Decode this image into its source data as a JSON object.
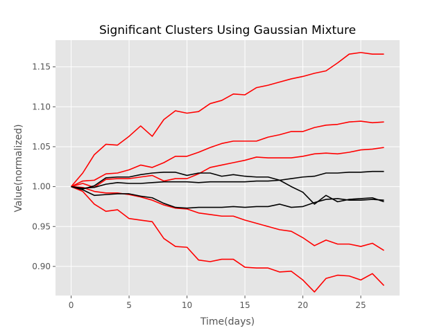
{
  "chart_data": {
    "type": "line",
    "title": "Significant Clusters Using Gaussian Mixture",
    "xlabel": "Time(days)",
    "ylabel": "Value(normalized)",
    "xlim": [
      -1.35,
      28.35
    ],
    "ylim": [
      0.8635,
      1.1835
    ],
    "xticks": [
      0,
      5,
      10,
      15,
      20,
      25
    ],
    "xtick_labels": [
      "0",
      "5",
      "10",
      "15",
      "20",
      "25"
    ],
    "yticks": [
      0.9,
      0.95,
      1.0,
      1.05,
      1.1,
      1.15
    ],
    "ytick_labels": [
      "0.90",
      "0.95",
      "1.00",
      "1.05",
      "1.10",
      "1.15"
    ],
    "grid": true,
    "background": "#e5e5e5",
    "grid_color": "#ffffff",
    "x": [
      0,
      1,
      2,
      3,
      4,
      5,
      6,
      7,
      8,
      9,
      10,
      11,
      12,
      13,
      14,
      15,
      16,
      17,
      18,
      19,
      20,
      21,
      22,
      23,
      24,
      25,
      26,
      27
    ],
    "series": [
      {
        "color": "#ff0000",
        "values": [
          1.0,
          1.017,
          1.04,
          1.053,
          1.052,
          1.063,
          1.076,
          1.063,
          1.084,
          1.095,
          1.092,
          1.094,
          1.104,
          1.108,
          1.116,
          1.115,
          1.124,
          1.127,
          1.131,
          1.135,
          1.138,
          1.142,
          1.145,
          1.155,
          1.166,
          1.168,
          1.166,
          1.166
        ]
      },
      {
        "color": "#ff0000",
        "values": [
          1.0,
          1.007,
          1.008,
          1.016,
          1.017,
          1.021,
          1.027,
          1.024,
          1.03,
          1.038,
          1.038,
          1.043,
          1.049,
          1.054,
          1.057,
          1.057,
          1.057,
          1.062,
          1.065,
          1.069,
          1.069,
          1.074,
          1.077,
          1.078,
          1.081,
          1.082,
          1.08,
          1.081
        ]
      },
      {
        "color": "#ff0000",
        "values": [
          1.0,
          1.004,
          0.999,
          1.009,
          1.01,
          1.01,
          1.012,
          1.014,
          1.007,
          1.01,
          1.01,
          1.016,
          1.024,
          1.027,
          1.03,
          1.033,
          1.037,
          1.036,
          1.036,
          1.036,
          1.038,
          1.041,
          1.042,
          1.041,
          1.043,
          1.046,
          1.047,
          1.049
        ]
      },
      {
        "color": "#ff0000",
        "values": [
          1.0,
          0.999,
          0.994,
          0.992,
          0.992,
          0.99,
          0.987,
          0.983,
          0.977,
          0.973,
          0.972,
          0.967,
          0.965,
          0.963,
          0.963,
          0.958,
          0.954,
          0.95,
          0.946,
          0.944,
          0.936,
          0.926,
          0.933,
          0.928,
          0.928,
          0.925,
          0.929,
          0.92
        ]
      },
      {
        "color": "#ff0000",
        "values": [
          1.0,
          0.994,
          0.978,
          0.969,
          0.971,
          0.96,
          0.958,
          0.956,
          0.935,
          0.925,
          0.924,
          0.908,
          0.906,
          0.909,
          0.909,
          0.899,
          0.898,
          0.898,
          0.893,
          0.894,
          0.883,
          0.868,
          0.885,
          0.889,
          0.888,
          0.883,
          0.891,
          0.876
        ]
      },
      {
        "color": "#000000",
        "values": [
          1.0,
          0.997,
          1.001,
          1.011,
          1.012,
          1.012,
          1.015,
          1.017,
          1.018,
          1.018,
          1.014,
          1.017,
          1.017,
          1.013,
          1.015,
          1.013,
          1.012,
          1.012,
          1.008,
          1.0,
          0.993,
          0.978,
          0.989,
          0.981,
          0.984,
          0.985,
          0.986,
          0.981
        ]
      },
      {
        "color": "#000000",
        "values": [
          1.0,
          0.996,
          0.989,
          0.99,
          0.991,
          0.991,
          0.988,
          0.986,
          0.979,
          0.974,
          0.973,
          0.974,
          0.974,
          0.974,
          0.975,
          0.974,
          0.975,
          0.975,
          0.978,
          0.974,
          0.975,
          0.98,
          0.984,
          0.985,
          0.983,
          0.983,
          0.984,
          0.983
        ]
      },
      {
        "color": "#000000",
        "values": [
          1.0,
          0.998,
          0.999,
          1.003,
          1.005,
          1.004,
          1.004,
          1.005,
          1.006,
          1.006,
          1.006,
          1.005,
          1.006,
          1.006,
          1.006,
          1.006,
          1.007,
          1.007,
          1.008,
          1.01,
          1.012,
          1.013,
          1.017,
          1.017,
          1.018,
          1.018,
          1.019,
          1.019
        ]
      }
    ]
  }
}
